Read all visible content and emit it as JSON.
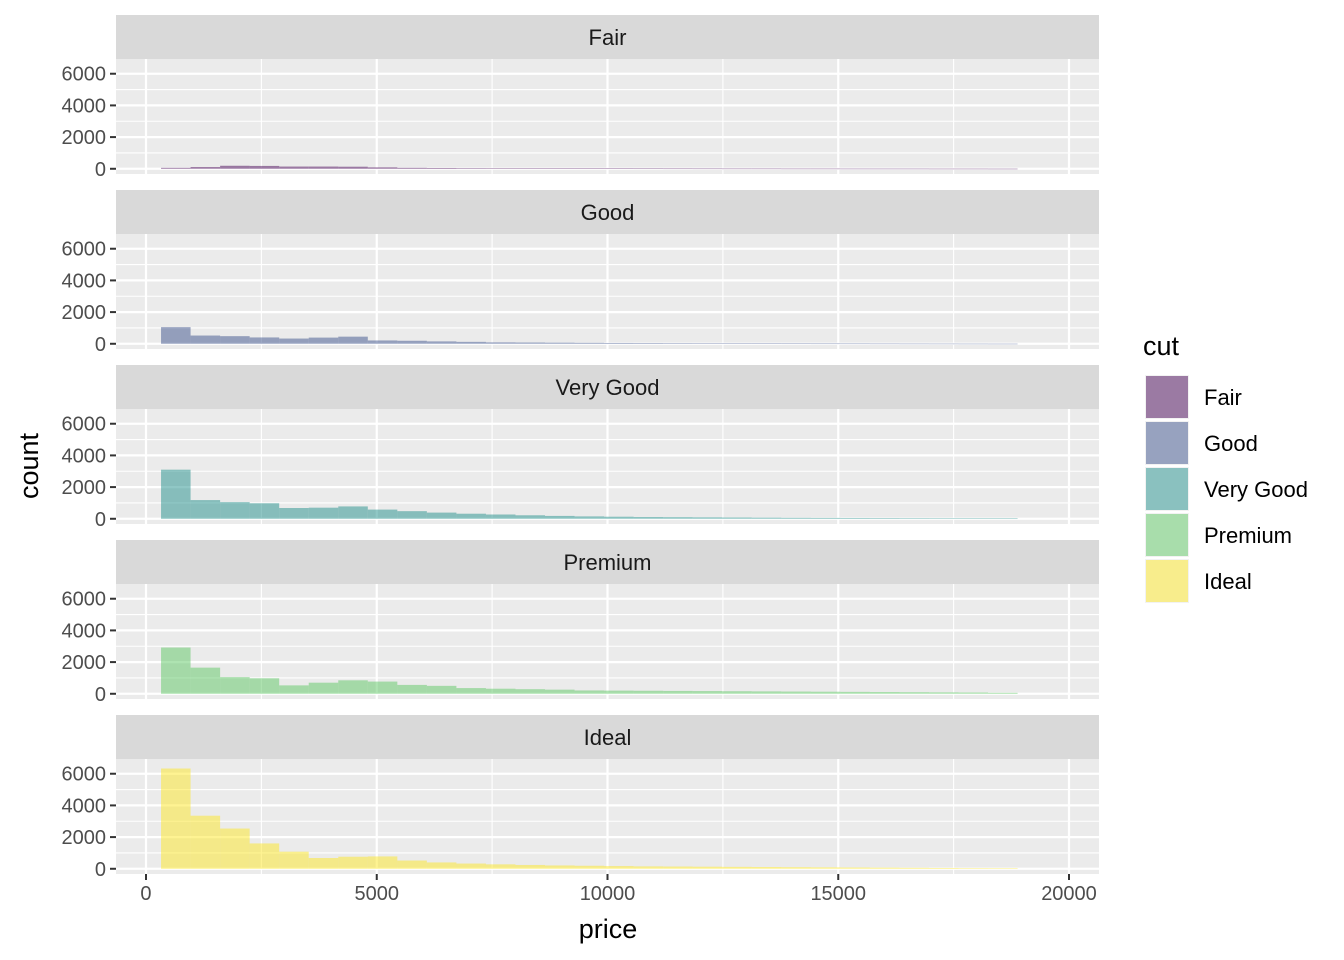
{
  "chart_data": {
    "type": "bar",
    "subtype": "faceted-histogram",
    "title": "",
    "xlabel": "price",
    "ylabel": "count",
    "xlim": [
      -650,
      20650
    ],
    "ylim": [
      -330,
      6930
    ],
    "xticks": [
      0,
      5000,
      10000,
      15000,
      20000
    ],
    "xtick_labels": [
      "0",
      "5000",
      "10000",
      "15000",
      "20000"
    ],
    "yticks": [
      0,
      2000,
      4000,
      6000
    ],
    "ytick_labels": [
      "0",
      "2000",
      "4000",
      "6000"
    ],
    "grid": true,
    "bin_width": 640,
    "bin_starts": [
      326,
      966,
      1606,
      2246,
      2886,
      3526,
      4166,
      4806,
      5446,
      6086,
      6726,
      7366,
      8006,
      8646,
      9286,
      9926,
      10566,
      11206,
      11846,
      12486,
      13126,
      13766,
      14406,
      15046,
      15686,
      16326,
      16966,
      17606,
      18246
    ],
    "legend": {
      "title": "cut",
      "placement": "right",
      "entries": [
        "Fair",
        "Good",
        "Very Good",
        "Premium",
        "Ideal"
      ]
    },
    "series": [
      {
        "name": "Fair",
        "color": "#440154",
        "values": [
          60,
          110,
          190,
          180,
          140,
          140,
          130,
          90,
          60,
          50,
          40,
          35,
          30,
          30,
          28,
          25,
          22,
          20,
          18,
          15,
          15,
          12,
          12,
          10,
          10,
          10,
          8,
          8,
          6
        ]
      },
      {
        "name": "Good",
        "color": "#3B528B",
        "values": [
          1050,
          520,
          480,
          400,
          330,
          390,
          450,
          210,
          190,
          150,
          120,
          90,
          80,
          70,
          60,
          50,
          45,
          40,
          35,
          30,
          25,
          22,
          20,
          18,
          15,
          12,
          10,
          8,
          6
        ]
      },
      {
        "name": "Very Good",
        "color": "#21908C",
        "values": [
          3100,
          1180,
          1050,
          980,
          680,
          700,
          780,
          580,
          480,
          390,
          320,
          270,
          220,
          180,
          150,
          130,
          110,
          100,
          90,
          80,
          70,
          60,
          55,
          50,
          45,
          40,
          35,
          30,
          25
        ]
      },
      {
        "name": "Premium",
        "color": "#5DC863",
        "values": [
          2920,
          1650,
          1050,
          980,
          530,
          700,
          850,
          770,
          560,
          500,
          360,
          320,
          290,
          260,
          210,
          200,
          190,
          180,
          170,
          160,
          150,
          140,
          130,
          120,
          110,
          100,
          90,
          80,
          60
        ]
      },
      {
        "name": "Ideal",
        "color": "#FDE725",
        "values": [
          6330,
          3350,
          2540,
          1600,
          1080,
          680,
          760,
          780,
          520,
          400,
          330,
          280,
          240,
          210,
          190,
          170,
          150,
          140,
          130,
          120,
          110,
          100,
          90,
          80,
          70,
          60,
          50,
          40,
          30
        ]
      }
    ]
  }
}
